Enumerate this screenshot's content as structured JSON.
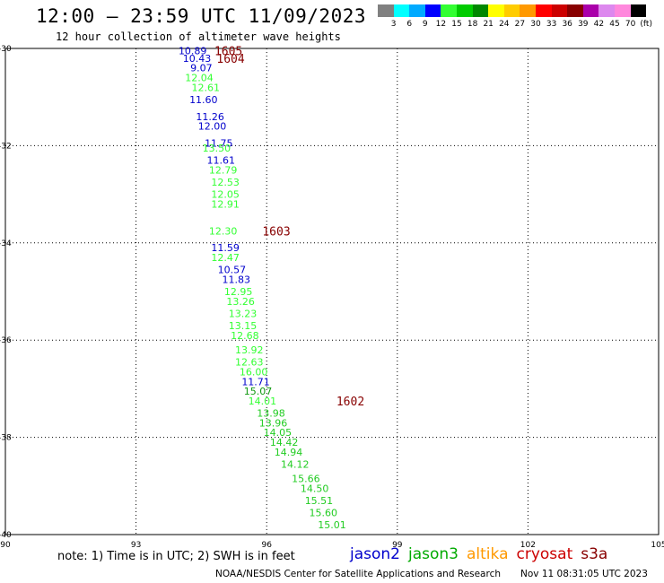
{
  "header": {
    "title": "12:00 — 23:59 UTC 11/09/2023",
    "subtitle": "12 hour collection of altimeter wave heights"
  },
  "color_scale": {
    "colors": [
      "#808080",
      "#00ffff",
      "#00aaff",
      "#0000ff",
      "#33ff33",
      "#00cc00",
      "#008800",
      "#ffff00",
      "#ffcc00",
      "#ff9900",
      "#ff0000",
      "#cc0000",
      "#880000",
      "#aa00aa",
      "#dd88ee",
      "#ff88dd",
      "#000000"
    ],
    "labels": [
      "3",
      "6",
      "9",
      "12",
      "15",
      "18",
      "21",
      "24",
      "27",
      "30",
      "33",
      "36",
      "39",
      "42",
      "45",
      "70",
      "(ft)"
    ]
  },
  "chart_data": {
    "type": "scatter",
    "title": "12:00 — 23:59 UTC 11/09/2023",
    "subtitle": "12 hour collection of altimeter wave heights",
    "xlabel": "",
    "ylabel": "",
    "xlim": [
      90,
      105
    ],
    "ylim": [
      -40,
      -30
    ],
    "x_ticks": [
      "90",
      "93",
      "96",
      "99",
      "102",
      "105"
    ],
    "y_ticks": [
      "-30",
      "-32",
      "-34",
      "-36",
      "-38",
      "-40"
    ],
    "grid": true,
    "series": [
      {
        "color": "#0000cc",
        "points": [
          [
            94.3,
            -30.05
          ],
          [
            94.4,
            -30.2
          ],
          [
            94.5,
            -30.4
          ],
          [
            94.55,
            -31.05
          ],
          [
            94.7,
            -31.4
          ],
          [
            94.75,
            -31.6
          ],
          [
            94.9,
            -31.95
          ],
          [
            94.95,
            -32.3
          ],
          [
            95.05,
            -34.1
          ],
          [
            95.2,
            -34.55
          ],
          [
            95.3,
            -34.75
          ],
          [
            95.75,
            -36.85
          ]
        ],
        "labels": [
          "10.89",
          "10.43",
          "9.07",
          "11.60",
          "11.26",
          "12.00",
          "11.75",
          "11.61",
          "11.59",
          "10.57",
          "11.83",
          "11.71"
        ]
      },
      {
        "color": "#33ff33",
        "points": [
          [
            94.45,
            -30.6
          ],
          [
            94.6,
            -30.8
          ],
          [
            94.85,
            -32.05
          ],
          [
            95.0,
            -32.5
          ],
          [
            95.05,
            -32.75
          ],
          [
            95.05,
            -33.0
          ],
          [
            95.05,
            -33.2
          ],
          [
            95.0,
            -33.75
          ],
          [
            95.05,
            -34.3
          ],
          [
            95.35,
            -35.0
          ],
          [
            95.4,
            -35.2
          ],
          [
            95.45,
            -35.45
          ],
          [
            95.45,
            -35.7
          ],
          [
            95.5,
            -35.9
          ],
          [
            95.6,
            -36.2
          ],
          [
            95.6,
            -36.45
          ],
          [
            95.7,
            -36.65
          ],
          [
            95.9,
            -37.25
          ]
        ],
        "labels": [
          "12.04",
          "12.61",
          "13.50",
          "12.79",
          "12.53",
          "12.05",
          "12.91",
          "12.30",
          "12.47",
          "12.95",
          "13.26",
          "13.23",
          "13.15",
          "12.68",
          "13.92",
          "12.63",
          "16.00",
          "14.01"
        ]
      },
      {
        "color": "#22cc22",
        "points": [
          [
            96.1,
            -37.5
          ],
          [
            96.15,
            -37.7
          ],
          [
            96.25,
            -37.9
          ],
          [
            96.4,
            -38.1
          ],
          [
            96.5,
            -38.3
          ],
          [
            96.65,
            -38.55
          ],
          [
            96.9,
            -38.85
          ],
          [
            97.1,
            -39.05
          ],
          [
            97.2,
            -39.3
          ],
          [
            97.3,
            -39.55
          ],
          [
            97.5,
            -39.8
          ]
        ],
        "labels": [
          "13.98",
          "13.96",
          "14.05",
          "14.42",
          "14.94",
          "14.12",
          "15.66",
          "14.50",
          "15.51",
          "15.60",
          "15.01"
        ]
      },
      {
        "color": "#119911",
        "points": [
          [
            95.8,
            -37.05
          ],
          [
            95.85,
            -37.05
          ]
        ],
        "labels": [
          "15.07",
          ""
        ]
      }
    ],
    "annotations": [
      {
        "text": "1605",
        "x": 94.8,
        "y": -30.05,
        "color": "#880000"
      },
      {
        "text": "1604",
        "x": 94.85,
        "y": -30.2,
        "color": "#880000"
      },
      {
        "text": "1603",
        "x": 95.9,
        "y": -33.75,
        "color": "#880000"
      },
      {
        "text": "1602",
        "x": 97.6,
        "y": -37.25,
        "color": "#880000"
      }
    ]
  },
  "footer": {
    "note": "note:  1) Time is in UTC;  2) SWH is in feet",
    "credit": "NOAA/NESDIS Center for Satellite Applications and Research",
    "timestamp": "Nov 11 08:31:05 UTC 2023"
  },
  "legend": [
    {
      "name": "jason2",
      "color": "#0000cc"
    },
    {
      "name": "jason3",
      "color": "#00aa00"
    },
    {
      "name": "altika",
      "color": "#ff9900"
    },
    {
      "name": "cryosat",
      "color": "#cc0000"
    },
    {
      "name": "s3a",
      "color": "#880000"
    }
  ]
}
